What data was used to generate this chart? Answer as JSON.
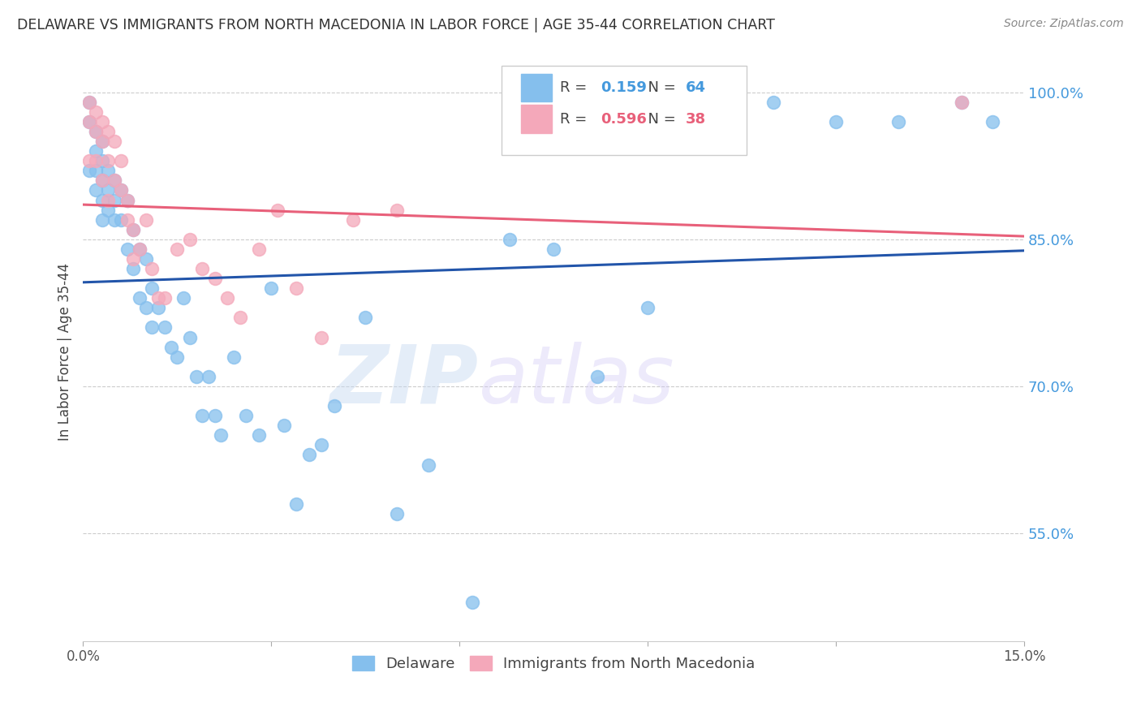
{
  "title": "DELAWARE VS IMMIGRANTS FROM NORTH MACEDONIA IN LABOR FORCE | AGE 35-44 CORRELATION CHART",
  "source": "Source: ZipAtlas.com",
  "ylabel": "In Labor Force | Age 35-44",
  "xlim": [
    0.0,
    0.15
  ],
  "ylim": [
    0.44,
    1.03
  ],
  "yticks": [
    0.55,
    0.7,
    0.85,
    1.0
  ],
  "ytick_labels": [
    "55.0%",
    "70.0%",
    "85.0%",
    "100.0%"
  ],
  "xticks": [
    0.0,
    0.03,
    0.06,
    0.09,
    0.12,
    0.15
  ],
  "xtick_labels": [
    "0.0%",
    "",
    "",
    "",
    "",
    "15.0%"
  ],
  "delaware_R": 0.159,
  "delaware_N": 64,
  "macedonia_R": 0.596,
  "macedonia_N": 38,
  "delaware_color": "#85BFED",
  "macedonia_color": "#F4A8BA",
  "delaware_line_color": "#2255AA",
  "macedonia_line_color": "#E8607A",
  "background_color": "#ffffff",
  "watermark_zip": "ZIP",
  "watermark_atlas": "atlas",
  "delaware_x": [
    0.001,
    0.001,
    0.001,
    0.002,
    0.002,
    0.002,
    0.002,
    0.003,
    0.003,
    0.003,
    0.003,
    0.003,
    0.004,
    0.004,
    0.004,
    0.005,
    0.005,
    0.005,
    0.006,
    0.006,
    0.007,
    0.007,
    0.008,
    0.008,
    0.009,
    0.009,
    0.01,
    0.01,
    0.011,
    0.011,
    0.012,
    0.013,
    0.014,
    0.015,
    0.016,
    0.017,
    0.018,
    0.019,
    0.02,
    0.021,
    0.022,
    0.024,
    0.026,
    0.028,
    0.03,
    0.032,
    0.034,
    0.036,
    0.038,
    0.04,
    0.045,
    0.05,
    0.055,
    0.062,
    0.068,
    0.075,
    0.082,
    0.09,
    0.1,
    0.11,
    0.12,
    0.13,
    0.14,
    0.145
  ],
  "delaware_y": [
    0.99,
    0.97,
    0.92,
    0.96,
    0.94,
    0.92,
    0.9,
    0.95,
    0.93,
    0.91,
    0.89,
    0.87,
    0.92,
    0.9,
    0.88,
    0.91,
    0.89,
    0.87,
    0.9,
    0.87,
    0.89,
    0.84,
    0.86,
    0.82,
    0.84,
    0.79,
    0.83,
    0.78,
    0.8,
    0.76,
    0.78,
    0.76,
    0.74,
    0.73,
    0.79,
    0.75,
    0.71,
    0.67,
    0.71,
    0.67,
    0.65,
    0.73,
    0.67,
    0.65,
    0.8,
    0.66,
    0.58,
    0.63,
    0.64,
    0.68,
    0.77,
    0.57,
    0.62,
    0.48,
    0.85,
    0.84,
    0.71,
    0.78,
    0.99,
    0.99,
    0.97,
    0.97,
    0.99,
    0.97
  ],
  "macedonia_x": [
    0.001,
    0.001,
    0.001,
    0.002,
    0.002,
    0.002,
    0.003,
    0.003,
    0.003,
    0.004,
    0.004,
    0.004,
    0.005,
    0.005,
    0.006,
    0.006,
    0.007,
    0.007,
    0.008,
    0.008,
    0.009,
    0.01,
    0.011,
    0.012,
    0.013,
    0.015,
    0.017,
    0.019,
    0.021,
    0.023,
    0.025,
    0.028,
    0.031,
    0.034,
    0.038,
    0.043,
    0.05,
    0.14
  ],
  "macedonia_y": [
    0.99,
    0.97,
    0.93,
    0.98,
    0.96,
    0.93,
    0.97,
    0.95,
    0.91,
    0.96,
    0.93,
    0.89,
    0.95,
    0.91,
    0.93,
    0.9,
    0.89,
    0.87,
    0.86,
    0.83,
    0.84,
    0.87,
    0.82,
    0.79,
    0.79,
    0.84,
    0.85,
    0.82,
    0.81,
    0.79,
    0.77,
    0.84,
    0.88,
    0.8,
    0.75,
    0.87,
    0.88,
    0.99
  ]
}
